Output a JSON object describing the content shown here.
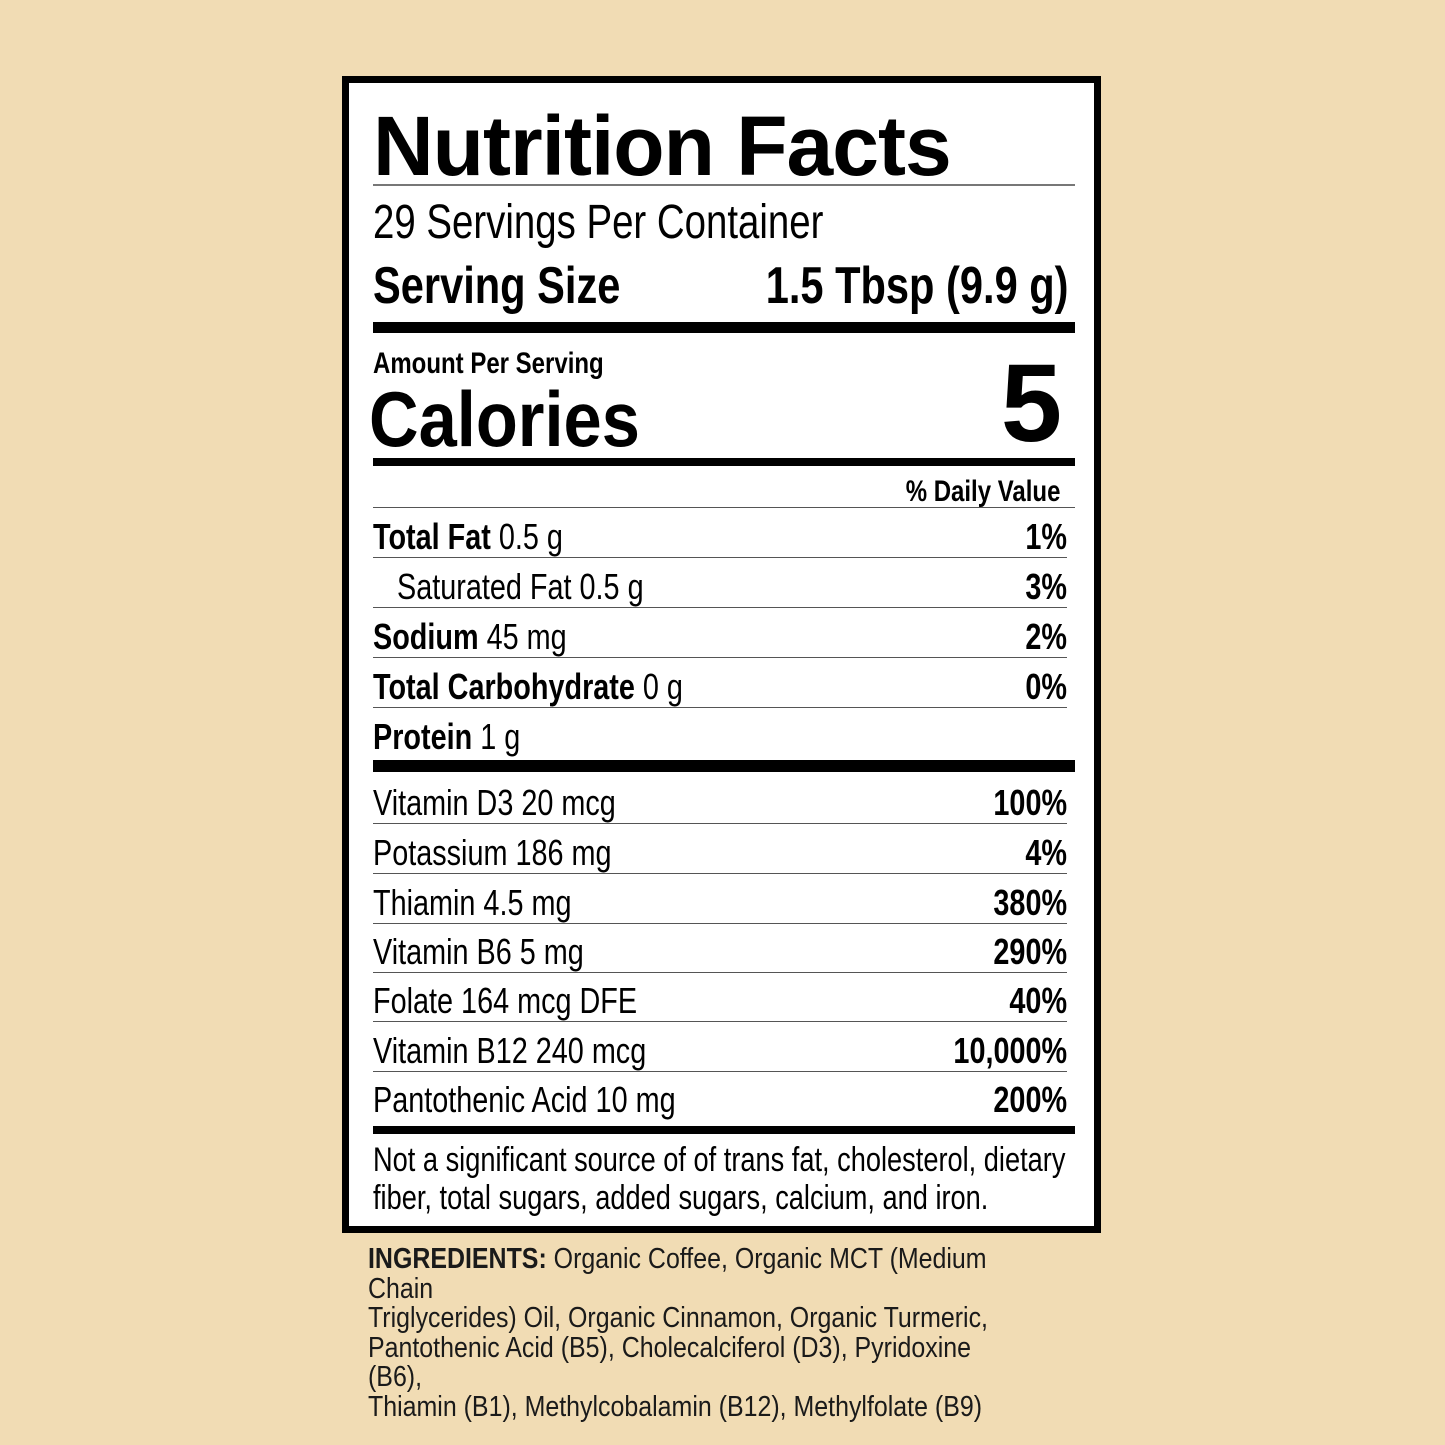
{
  "title": "Nutrition Facts",
  "servings_per_container": "29 Servings Per Container",
  "serving_size": {
    "label": "Serving Size",
    "value": "1.5 Tbsp (9.9 g)"
  },
  "amount_per_serving": "Amount Per Serving",
  "calories": {
    "label": "Calories",
    "value": "5"
  },
  "daily_value_header": "% Daily Value",
  "nutrients": [
    {
      "name": "Total Fat",
      "amount": "0.5 g",
      "dv": "1%"
    },
    {
      "name": "Saturated Fat",
      "amount": "0.5 g",
      "dv": "3%"
    },
    {
      "name": "Sodium",
      "amount": "45 mg",
      "dv": "2%"
    },
    {
      "name": "Total Carbohydrate",
      "amount": "0 g",
      "dv": "0%"
    },
    {
      "name": "Protein",
      "amount": "1 g",
      "dv": ""
    }
  ],
  "vitamins": [
    {
      "name": "Vitamin D3 20 mcg",
      "dv": "100%"
    },
    {
      "name": "Potassium 186 mg",
      "dv": "4%"
    },
    {
      "name": "Thiamin 4.5 mg",
      "dv": "380%"
    },
    {
      "name": "Vitamin B6 5 mg",
      "dv": "290%"
    },
    {
      "name": "Folate 164 mcg DFE",
      "dv": "40%"
    },
    {
      "name": "Vitamin B12 240 mcg",
      "dv": "10,000%"
    },
    {
      "name": "Pantothenic Acid 10 mg",
      "dv": "200%"
    }
  ],
  "footnote": [
    "Not a significant source of of trans fat, cholesterol, dietary",
    "fiber, total sugars, added sugars, calcium, and iron."
  ],
  "ingredients": {
    "label": "INGREDIENTS:",
    "lines": [
      " Organic Coffee, Organic MCT (Medium Chain",
      "Triglycerides) Oil, Organic Cinnamon, Organic Turmeric,",
      "Pantothenic Acid (B5), Cholecalciferol (D3), Pyridoxine (B6),",
      "Thiamin (B1), Methylcobalamin (B12), Methylfolate (B9)"
    ]
  },
  "colors": {
    "background": "#f1dcb4",
    "label": "#ffffff",
    "ink": "#000000"
  }
}
